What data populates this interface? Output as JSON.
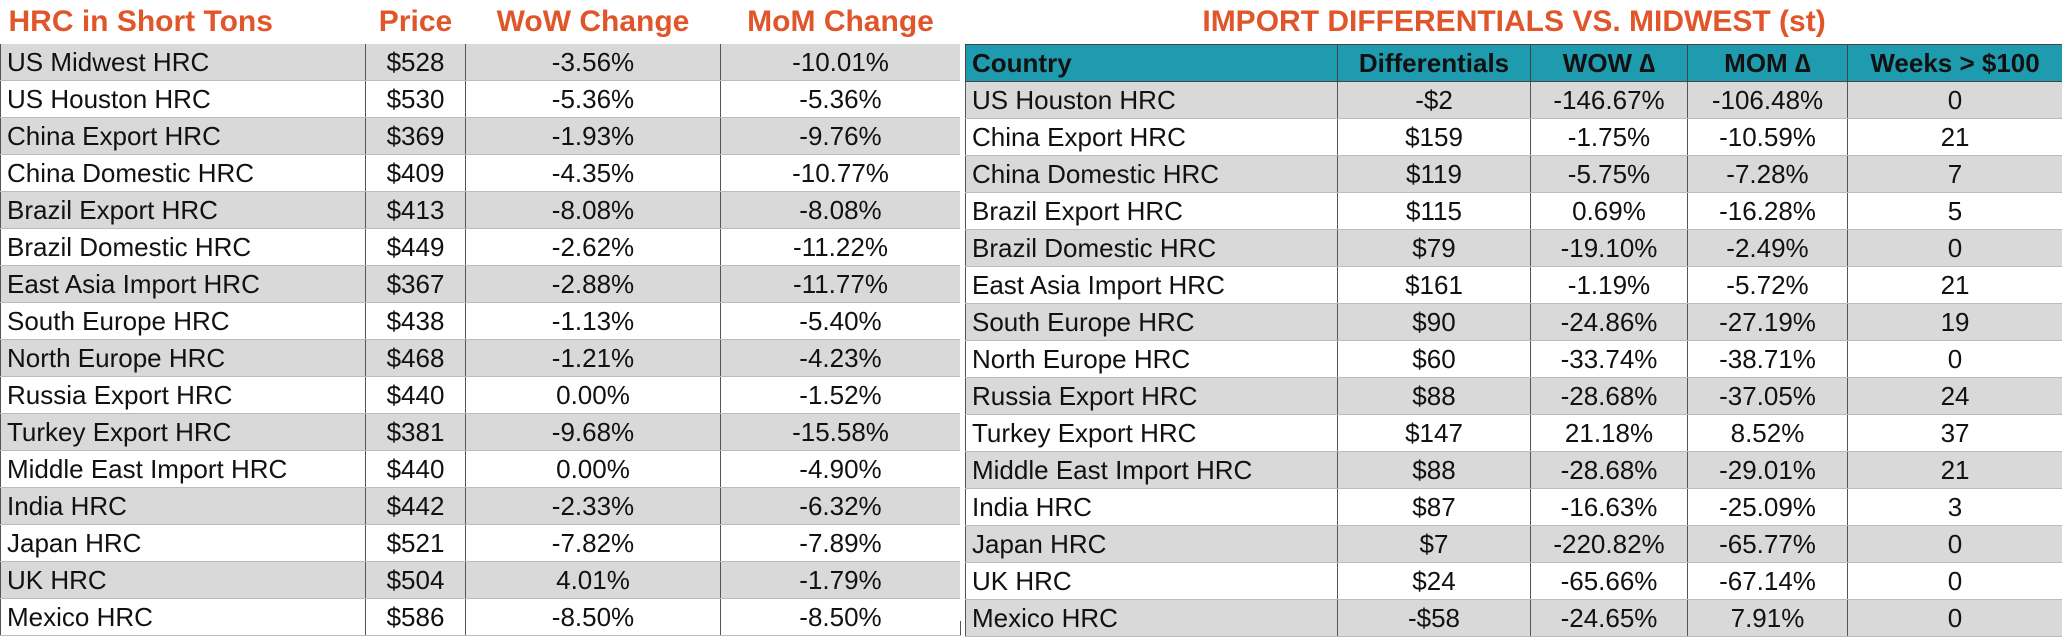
{
  "left": {
    "headers": [
      "HRC in Short Tons",
      "Price",
      "WoW Change",
      "MoM Change"
    ],
    "rows": [
      [
        "US Midwest HRC",
        "$528",
        "-3.56%",
        "-10.01%"
      ],
      [
        "US Houston HRC",
        "$530",
        "-5.36%",
        "-5.36%"
      ],
      [
        "China Export HRC",
        "$369",
        "-1.93%",
        "-9.76%"
      ],
      [
        "China Domestic HRC",
        "$409",
        "-4.35%",
        "-10.77%"
      ],
      [
        "Brazil Export HRC",
        "$413",
        "-8.08%",
        "-8.08%"
      ],
      [
        "Brazil Domestic HRC",
        "$449",
        "-2.62%",
        "-11.22%"
      ],
      [
        "East Asia Import HRC",
        "$367",
        "-2.88%",
        "-11.77%"
      ],
      [
        "South Europe HRC",
        "$438",
        "-1.13%",
        "-5.40%"
      ],
      [
        "North Europe HRC",
        "$468",
        "-1.21%",
        "-4.23%"
      ],
      [
        "Russia Export HRC",
        "$440",
        "0.00%",
        "-1.52%"
      ],
      [
        "Turkey Export HRC",
        "$381",
        "-9.68%",
        "-15.58%"
      ],
      [
        "Middle East Import HRC",
        "$440",
        "0.00%",
        "-4.90%"
      ],
      [
        "India HRC",
        "$442",
        "-2.33%",
        "-6.32%"
      ],
      [
        "Japan HRC",
        "$521",
        "-7.82%",
        "-7.89%"
      ],
      [
        "UK HRC",
        "$504",
        "4.01%",
        "-1.79%"
      ],
      [
        "Mexico HRC",
        "$586",
        "-8.50%",
        "-8.50%"
      ]
    ]
  },
  "right": {
    "title": "IMPORT DIFFERENTIALS VS. MIDWEST (st)",
    "headers": [
      "Country",
      "Differentials",
      "WOW ∆",
      "MOM ∆",
      "Weeks > $100"
    ],
    "rows": [
      [
        "US Houston HRC",
        "-$2",
        "-146.67%",
        "-106.48%",
        "0"
      ],
      [
        "China Export HRC",
        "$159",
        "-1.75%",
        "-10.59%",
        "21"
      ],
      [
        "China Domestic HRC",
        "$119",
        "-5.75%",
        "-7.28%",
        "7"
      ],
      [
        "Brazil Export HRC",
        "$115",
        "0.69%",
        "-16.28%",
        "5"
      ],
      [
        "Brazil Domestic HRC",
        "$79",
        "-19.10%",
        "-2.49%",
        "0"
      ],
      [
        "East Asia Import HRC",
        "$161",
        "-1.19%",
        "-5.72%",
        "21"
      ],
      [
        "South Europe HRC",
        "$90",
        "-24.86%",
        "-27.19%",
        "19"
      ],
      [
        "North Europe HRC",
        "$60",
        "-33.74%",
        "-38.71%",
        "0"
      ],
      [
        "Russia Export HRC",
        "$88",
        "-28.68%",
        "-37.05%",
        "24"
      ],
      [
        "Turkey Export HRC",
        "$147",
        "21.18%",
        "8.52%",
        "37"
      ],
      [
        "Middle East Import HRC",
        "$88",
        "-28.68%",
        "-29.01%",
        "21"
      ],
      [
        "India HRC",
        "$87",
        "-16.63%",
        "-25.09%",
        "3"
      ],
      [
        "Japan HRC",
        "$7",
        "-220.82%",
        "-65.77%",
        "0"
      ],
      [
        "UK HRC",
        "$24",
        "-65.66%",
        "-67.14%",
        "0"
      ],
      [
        "Mexico HRC",
        "-$58",
        "-24.65%",
        "7.91%",
        "0"
      ]
    ]
  },
  "colors": {
    "header_text": "#e0562a",
    "teal_header": "#1f9bb0",
    "row_shade": "#d9d9d9"
  }
}
